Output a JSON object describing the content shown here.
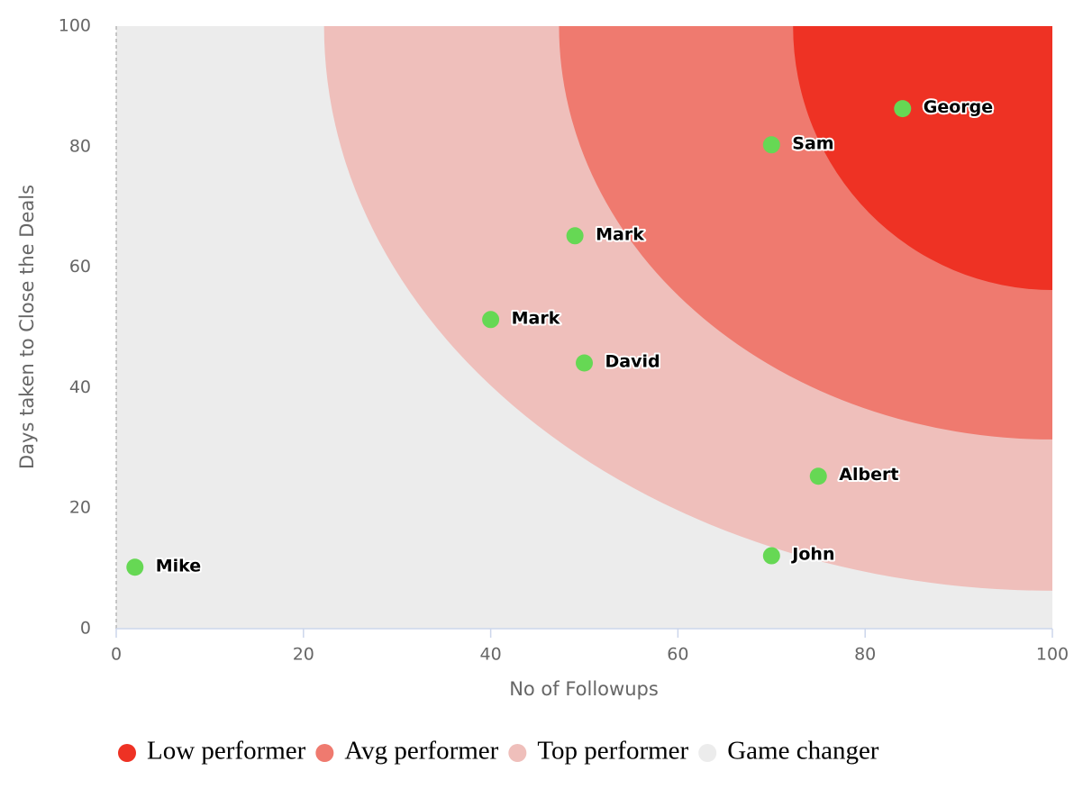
{
  "chart_data": {
    "type": "scatter",
    "xlabel": "No of Followups",
    "ylabel": "Days taken to Close the Deals",
    "xlim": [
      0,
      100
    ],
    "ylim": [
      0,
      100
    ],
    "xticks": [
      0,
      20,
      40,
      60,
      80,
      100
    ],
    "yticks": [
      0,
      20,
      40,
      60,
      80,
      100
    ],
    "point_color": "#66d854",
    "labels": [
      "George",
      "Sam",
      "Mark",
      "Mark",
      "David",
      "Albert",
      "John",
      "Mike"
    ],
    "x": [
      84,
      70,
      49,
      40,
      50,
      75,
      70,
      2
    ],
    "y": [
      86.3,
      80.3,
      65.2,
      51.3,
      44.1,
      25.3,
      12.1,
      10.2
    ],
    "zones": [
      {
        "name": "Low performer",
        "color": "#ee3224",
        "rx": 27.7,
        "ry": 43.8
      },
      {
        "name": "Avg performer",
        "color": "#ef7a6f",
        "rx": 52.7,
        "ry": 68.6
      },
      {
        "name": "Top performer",
        "color": "#efbfbb",
        "rx": 77.8,
        "ry": 93.7
      },
      {
        "name": "Game changer",
        "color": "#ececec"
      }
    ]
  }
}
